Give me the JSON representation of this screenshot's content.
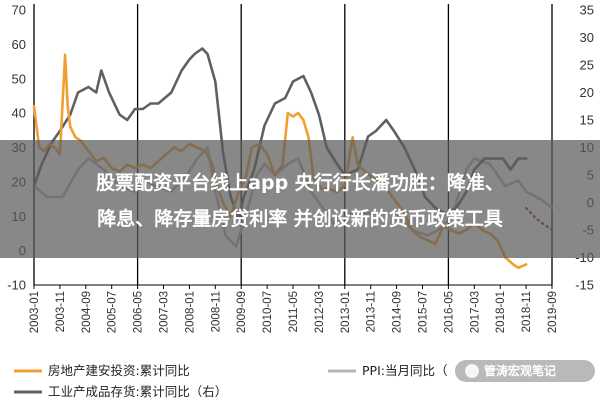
{
  "chart_data": {
    "type": "line",
    "title": "",
    "xlabel": "",
    "ylabel": "",
    "x_ticks": [
      "2003-01",
      "2003-11",
      "2004-09",
      "2005-07",
      "2006-05",
      "2007-03",
      "2008-01",
      "2008-11",
      "2009-09",
      "2010-07",
      "2011-05",
      "2012-03",
      "2013-01",
      "2013-11",
      "2014-09",
      "2015-07",
      "2016-05",
      "2017-03",
      "2018-01",
      "2018-11",
      "2019-09"
    ],
    "left_axis": {
      "ylim": [
        -10,
        70
      ],
      "ticks": [
        "-10",
        "0",
        "10",
        "20",
        "30",
        "40",
        "50",
        "60",
        "70"
      ]
    },
    "right_axis": {
      "ylim": [
        -15,
        35
      ],
      "ticks": [
        "-15",
        "-10",
        "-5",
        "0",
        "5",
        "10",
        "15",
        "20",
        "25",
        "30",
        "35"
      ]
    },
    "vertical_markers": [
      "2003-01",
      "2006-05",
      "2009-09",
      "2013-01",
      "2016-05",
      "2019-09"
    ],
    "grid": false,
    "legend_placement": "bottom",
    "series": [
      {
        "name": "房地产建安投资:累计同比",
        "axis": "left",
        "color": "#f0a030",
        "points": [
          [
            "2003-01",
            42
          ],
          [
            "2003-03",
            30
          ],
          [
            "2003-05",
            29
          ],
          [
            "2003-07",
            31
          ],
          [
            "2003-09",
            30
          ],
          [
            "2003-11",
            28
          ],
          [
            "2004-01",
            57
          ],
          [
            "2004-02",
            42
          ],
          [
            "2004-03",
            36
          ],
          [
            "2004-05",
            33
          ],
          [
            "2004-07",
            32
          ],
          [
            "2004-09",
            30
          ],
          [
            "2004-11",
            28
          ],
          [
            "2005-01",
            26
          ],
          [
            "2005-04",
            27
          ],
          [
            "2005-07",
            24
          ],
          [
            "2005-10",
            23
          ],
          [
            "2006-01",
            25
          ],
          [
            "2006-04",
            24
          ],
          [
            "2006-07",
            25
          ],
          [
            "2006-10",
            24
          ],
          [
            "2007-01",
            26
          ],
          [
            "2007-04",
            28
          ],
          [
            "2007-07",
            30
          ],
          [
            "2007-10",
            29
          ],
          [
            "2008-01",
            31
          ],
          [
            "2008-04",
            30
          ],
          [
            "2008-07",
            29
          ],
          [
            "2008-10",
            25
          ],
          [
            "2008-11",
            20
          ],
          [
            "2009-02",
            14
          ],
          [
            "2009-05",
            10
          ],
          [
            "2009-08",
            17
          ],
          [
            "2009-11",
            22
          ],
          [
            "2010-01",
            30
          ],
          [
            "2010-04",
            31
          ],
          [
            "2010-07",
            28
          ],
          [
            "2010-10",
            22
          ],
          [
            "2011-01",
            25
          ],
          [
            "2011-03",
            40
          ],
          [
            "2011-05",
            39
          ],
          [
            "2011-07",
            40
          ],
          [
            "2011-09",
            38
          ],
          [
            "2011-11",
            33
          ],
          [
            "2012-01",
            21
          ],
          [
            "2012-04",
            18
          ],
          [
            "2012-07",
            18
          ],
          [
            "2012-10",
            17
          ],
          [
            "2013-01",
            19
          ],
          [
            "2013-04",
            33
          ],
          [
            "2013-06",
            25
          ],
          [
            "2013-09",
            23
          ],
          [
            "2013-12",
            21
          ],
          [
            "2014-03",
            20
          ],
          [
            "2014-06",
            17
          ],
          [
            "2014-09",
            14
          ],
          [
            "2014-12",
            11
          ],
          [
            "2015-03",
            6
          ],
          [
            "2015-06",
            4
          ],
          [
            "2015-09",
            3
          ],
          [
            "2015-12",
            2
          ],
          [
            "2016-03",
            7
          ],
          [
            "2016-06",
            6
          ],
          [
            "2016-09",
            5
          ],
          [
            "2016-12",
            6
          ],
          [
            "2017-03",
            8
          ],
          [
            "2017-06",
            6
          ],
          [
            "2017-09",
            5
          ],
          [
            "2017-12",
            3
          ],
          [
            "2018-03",
            -2
          ],
          [
            "2018-06",
            -4
          ],
          [
            "2018-08",
            -5
          ],
          [
            "2018-11",
            -4
          ]
        ]
      },
      {
        "name": "PPI:当月同比",
        "axis": "right",
        "color": "#b4b4b4",
        "points": [
          [
            "2003-01",
            3
          ],
          [
            "2003-06",
            1
          ],
          [
            "2003-12",
            1
          ],
          [
            "2004-06",
            6
          ],
          [
            "2004-10",
            8
          ],
          [
            "2005-04",
            6
          ],
          [
            "2005-10",
            3
          ],
          [
            "2006-04",
            2
          ],
          [
            "2006-08",
            4
          ],
          [
            "2006-12",
            3
          ],
          [
            "2007-06",
            2
          ],
          [
            "2007-12",
            5
          ],
          [
            "2008-04",
            8
          ],
          [
            "2008-08",
            10
          ],
          [
            "2008-11",
            2
          ],
          [
            "2009-03",
            -6
          ],
          [
            "2009-07",
            -8
          ],
          [
            "2009-11",
            -2
          ],
          [
            "2010-03",
            5
          ],
          [
            "2010-06",
            7
          ],
          [
            "2010-10",
            5
          ],
          [
            "2011-03",
            7
          ],
          [
            "2011-07",
            8
          ],
          [
            "2011-12",
            2
          ],
          [
            "2012-06",
            -2
          ],
          [
            "2012-09",
            -4
          ],
          [
            "2013-03",
            -2
          ],
          [
            "2013-08",
            -2
          ],
          [
            "2014-03",
            -2
          ],
          [
            "2014-09",
            -2
          ],
          [
            "2015-03",
            -5
          ],
          [
            "2015-09",
            -6
          ],
          [
            "2016-01",
            -5
          ],
          [
            "2016-06",
            -3
          ],
          [
            "2016-12",
            6
          ],
          [
            "2017-03",
            8
          ],
          [
            "2017-09",
            7
          ],
          [
            "2018-03",
            3
          ],
          [
            "2018-08",
            4
          ],
          [
            "2018-11",
            2
          ],
          [
            "2019-05",
            0.5
          ],
          [
            "2019-09",
            -1
          ]
        ]
      },
      {
        "name": "工业产成品存货:累计同比（右）",
        "axis": "right",
        "color": "#606060",
        "points": [
          [
            "2003-01",
            3
          ],
          [
            "2003-04",
            7
          ],
          [
            "2003-08",
            11
          ],
          [
            "2003-11",
            13
          ],
          [
            "2004-03",
            16
          ],
          [
            "2004-06",
            20
          ],
          [
            "2004-10",
            21
          ],
          [
            "2005-01",
            20
          ],
          [
            "2005-03",
            24
          ],
          [
            "2005-06",
            20
          ],
          [
            "2005-10",
            16
          ],
          [
            "2006-01",
            15
          ],
          [
            "2006-04",
            17
          ],
          [
            "2006-07",
            17
          ],
          [
            "2006-10",
            18
          ],
          [
            "2007-01",
            18
          ],
          [
            "2007-06",
            20
          ],
          [
            "2007-10",
            24
          ],
          [
            "2008-01",
            26
          ],
          [
            "2008-03",
            27
          ],
          [
            "2008-06",
            28
          ],
          [
            "2008-08",
            27
          ],
          [
            "2008-11",
            22
          ],
          [
            "2009-02",
            9
          ],
          [
            "2009-05",
            1
          ],
          [
            "2009-08",
            -3
          ],
          [
            "2009-10",
            1
          ],
          [
            "2010-02",
            6
          ],
          [
            "2010-06",
            14
          ],
          [
            "2010-10",
            18
          ],
          [
            "2011-02",
            19
          ],
          [
            "2011-05",
            22
          ],
          [
            "2011-09",
            23
          ],
          [
            "2011-12",
            20
          ],
          [
            "2012-03",
            16
          ],
          [
            "2012-06",
            10
          ],
          [
            "2012-10",
            7
          ],
          [
            "2013-01",
            5
          ],
          [
            "2013-06",
            6
          ],
          [
            "2013-10",
            12
          ],
          [
            "2014-01",
            13
          ],
          [
            "2014-05",
            15
          ],
          [
            "2014-08",
            13
          ],
          [
            "2014-12",
            10
          ],
          [
            "2015-04",
            6
          ],
          [
            "2015-08",
            1
          ],
          [
            "2015-12",
            -1
          ],
          [
            "2016-04",
            -2
          ],
          [
            "2016-08",
            -1
          ],
          [
            "2016-12",
            2
          ],
          [
            "2017-03",
            6
          ],
          [
            "2017-07",
            8
          ],
          [
            "2017-11",
            8
          ],
          [
            "2018-02",
            8
          ],
          [
            "2018-05",
            6
          ],
          [
            "2018-08",
            8
          ],
          [
            "2018-11",
            8
          ]
        ]
      },
      {
        "name": "forecast",
        "axis": "right",
        "color": "#9a2a30",
        "dotted": true,
        "points": [
          [
            "2018-11",
            -1
          ],
          [
            "2019-01",
            -2
          ],
          [
            "2019-03",
            -3
          ],
          [
            "2019-06",
            -4
          ],
          [
            "2019-09",
            -5
          ]
        ]
      }
    ]
  },
  "legend": [
    {
      "label": "房地产建安投资:累计同比",
      "color": "#f0a030",
      "style": "solid"
    },
    {
      "label": "PPI:当月同比（",
      "color": "#b4b4b4",
      "style": "solid"
    },
    {
      "label": "工业产成品存货:累计同比（右）",
      "color": "#606060",
      "style": "solid"
    }
  ],
  "banner": {
    "line1": "股票配资平台线上app 央行行长潘功胜：降准、",
    "line2": "降息、降存量房贷利率 并创设新的货币政策工具"
  },
  "watermark": {
    "text": "管涛宏观笔记"
  }
}
